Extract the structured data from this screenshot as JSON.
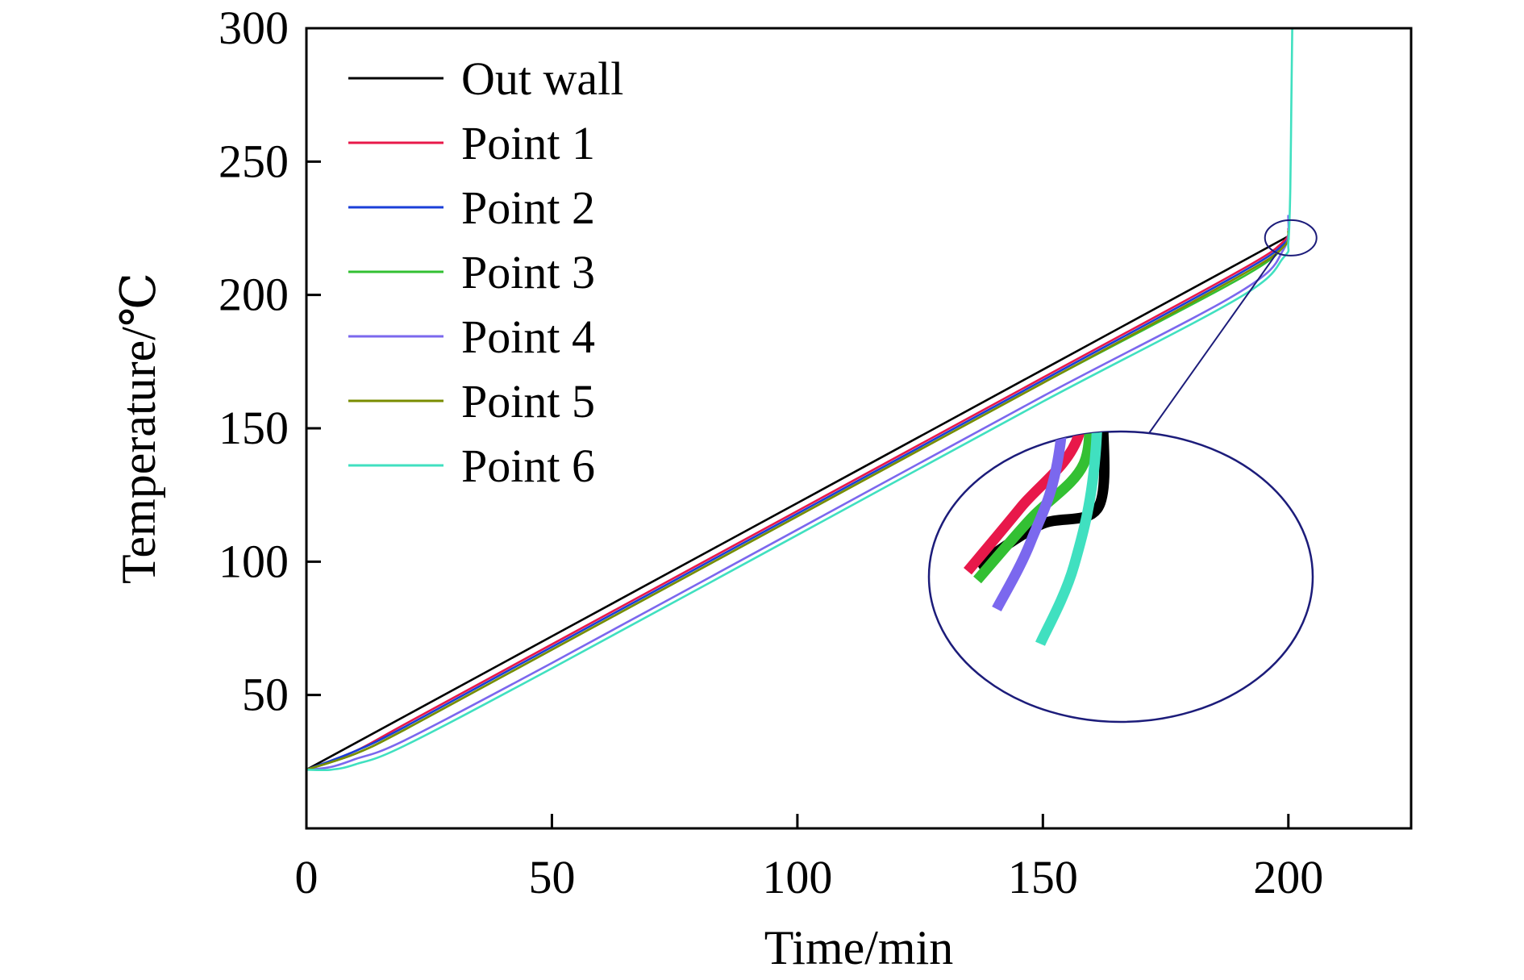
{
  "chart_data": {
    "type": "line",
    "title": "",
    "xlabel": "Time/min",
    "ylabel": "Temperature/℃",
    "xlim": [
      0,
      225
    ],
    "ylim": [
      0,
      300
    ],
    "x_ticks": [
      0,
      50,
      100,
      150,
      200
    ],
    "y_ticks": [
      50,
      100,
      150,
      200,
      250,
      300
    ],
    "grid": false,
    "legend_position": "top-left",
    "series": [
      {
        "name": "Out wall",
        "color": "#000000",
        "x": [
          0,
          20,
          50,
          100,
          150,
          190,
          198,
          200
        ],
        "y": [
          22,
          42,
          72,
          122,
          172,
          212,
          220,
          222
        ]
      },
      {
        "name": "Point 1",
        "color": "#e8184a",
        "x": [
          0,
          10,
          20,
          50,
          100,
          150,
          190,
          199,
          200
        ],
        "y": [
          22,
          29,
          39,
          69,
          119,
          169,
          209,
          220,
          225
        ]
      },
      {
        "name": "Point 2",
        "color": "#1a3fd8",
        "x": [
          0,
          10,
          20,
          50,
          100,
          150,
          190,
          199,
          200
        ],
        "y": [
          22,
          29,
          38,
          68,
          118,
          168,
          208,
          219,
          224
        ]
      },
      {
        "name": "Point 3",
        "color": "#33c033",
        "x": [
          0,
          10,
          20,
          50,
          100,
          150,
          190,
          199,
          200
        ],
        "y": [
          22,
          28,
          37,
          67,
          117,
          167,
          206,
          218,
          223
        ]
      },
      {
        "name": "Point 4",
        "color": "#7b68ee",
        "x": [
          0,
          5,
          10,
          20,
          50,
          100,
          150,
          190,
          199,
          200
        ],
        "y": [
          22,
          23,
          26,
          33,
          62,
          112,
          162,
          201,
          217,
          230
        ]
      },
      {
        "name": "Point 5",
        "color": "#7a8c00",
        "x": [
          0,
          10,
          20,
          50,
          100,
          150,
          190,
          199,
          200
        ],
        "y": [
          22,
          28,
          37,
          67,
          117,
          167,
          207,
          218,
          224
        ]
      },
      {
        "name": "Point 6",
        "color": "#40e0c0",
        "x": [
          0,
          5,
          10,
          20,
          50,
          100,
          150,
          190,
          199,
          200,
          200.4,
          200.6,
          200.8
        ],
        "y": [
          22,
          22,
          24,
          31,
          60,
          110,
          160,
          199,
          214,
          220,
          240,
          270,
          300
        ]
      }
    ],
    "zoom_inset": {
      "center": [
        199.5,
        222
      ],
      "shown": true,
      "series_order_drawn": [
        "Out wall",
        "Point 1",
        "Point 3",
        "Point 4",
        "Point 6"
      ]
    }
  }
}
